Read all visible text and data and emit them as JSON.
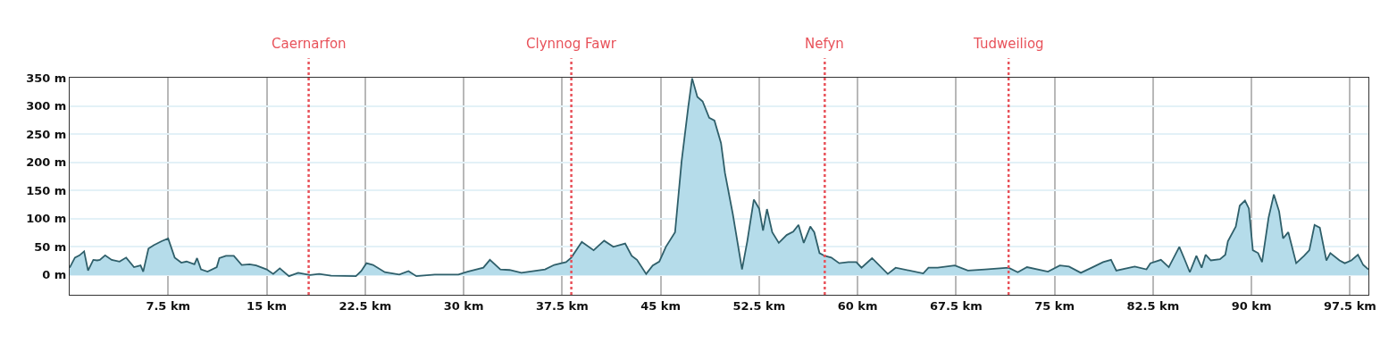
{
  "chart_data": {
    "type": "area",
    "x": [
      0,
      0.4,
      0.75,
      1.1,
      1.4,
      1.8,
      2.1,
      2.3,
      2.7,
      3.2,
      3.8,
      4.3,
      4.9,
      5.4,
      5.6,
      6.0,
      6.4,
      7.0,
      7.5,
      8.0,
      8.5,
      8.9,
      9.5,
      9.7,
      10.0,
      10.5,
      11.2,
      11.4,
      11.9,
      12.5,
      13.1,
      13.7,
      14.2,
      15.0,
      15.5,
      16.0,
      16.7,
      17.4,
      18.3,
      19.0,
      19.9,
      21.8,
      22.2,
      22.6,
      23.1,
      24.0,
      25.1,
      25.8,
      26.4,
      27.8,
      29.6,
      30.3,
      31.5,
      32.0,
      32.8,
      33.5,
      34.4,
      36.2,
      36.9,
      37.8,
      38.2,
      39.0,
      39.9,
      40.7,
      41.4,
      42.3,
      42.8,
      43.2,
      43.9,
      44.4,
      44.9,
      45.4,
      46.1,
      46.6,
      47.1,
      47.4,
      47.8,
      48.2,
      48.7,
      49.1,
      49.6,
      49.9,
      50.5,
      51.2,
      51.6,
      52.1,
      52.5,
      52.8,
      53.1,
      53.5,
      54.0,
      54.6,
      55.1,
      55.5,
      55.9,
      56.4,
      56.7,
      57.1,
      57.5,
      58.0,
      58.6,
      59.3,
      59.9,
      60.3,
      61.1,
      62.3,
      62.9,
      65.0,
      65.4,
      66.1,
      67.4,
      68.4,
      69.7,
      71.5,
      72.2,
      72.9,
      74.5,
      75.4,
      76.1,
      77.0,
      77.9,
      78.7,
      79.3,
      79.7,
      81.1,
      82.0,
      82.3,
      83.1,
      83.7,
      84.5,
      84.9,
      85.3,
      85.8,
      86.2,
      86.5,
      86.9,
      87.6,
      88.0,
      88.2,
      88.8,
      89.1,
      89.5,
      89.8,
      90.1,
      90.5,
      90.8,
      91.3,
      91.7,
      92.1,
      92.4,
      92.8,
      93.4,
      94.0,
      94.4,
      94.8,
      95.2,
      95.7,
      96.0,
      96.7,
      97.1,
      97.6,
      98.1,
      98.5,
      98.9
    ],
    "series": [
      {
        "color": "#2f5f6a",
        "values": [
          13,
          31,
          35,
          42,
          8,
          27,
          26,
          27,
          35,
          27,
          24,
          31,
          14,
          17,
          6,
          47,
          53,
          60,
          65,
          31,
          22,
          24,
          19,
          30,
          10,
          6,
          14,
          30,
          34,
          34,
          18,
          19,
          17,
          10,
          2,
          12,
          -2,
          4,
          0,
          2,
          -1,
          -2,
          7,
          21,
          18,
          5,
          1,
          7,
          -2,
          1,
          1,
          6,
          13,
          27,
          10,
          9,
          4,
          10,
          18,
          23,
          31,
          59,
          44,
          61,
          50,
          56,
          34,
          27,
          2,
          17,
          24,
          50,
          76,
          202,
          297,
          349,
          316,
          308,
          279,
          274,
          234,
          181,
          108,
          10,
          60,
          134,
          118,
          79,
          117,
          76,
          57,
          71,
          77,
          89,
          57,
          86,
          76,
          39,
          34,
          31,
          21,
          23,
          23,
          13,
          30,
          2,
          13,
          3,
          13,
          13,
          17,
          8,
          10,
          13,
          5,
          14,
          6,
          17,
          15,
          4,
          14,
          23,
          27,
          8,
          15,
          10,
          21,
          27,
          14,
          50,
          28,
          5,
          34,
          13,
          36,
          26,
          28,
          36,
          60,
          86,
          123,
          132,
          118,
          44,
          39,
          23,
          102,
          143,
          113,
          65,
          76,
          21,
          34,
          44,
          89,
          84,
          26,
          39,
          26,
          21,
          26,
          36,
          18,
          10
        ]
      }
    ],
    "xlim": [
      0,
      98.9
    ],
    "xticks": [
      {
        "value": 7.5,
        "label": "7.5 km"
      },
      {
        "value": 15,
        "label": "15 km"
      },
      {
        "value": 22.5,
        "label": "22.5 km"
      },
      {
        "value": 30,
        "label": "30 km"
      },
      {
        "value": 37.5,
        "label": "37.5 km"
      },
      {
        "value": 45,
        "label": "45 km"
      },
      {
        "value": 52.5,
        "label": "52.5 km"
      },
      {
        "value": 60,
        "label": "60 km"
      },
      {
        "value": 67.5,
        "label": "67.5 km"
      },
      {
        "value": 75,
        "label": "75 km"
      },
      {
        "value": 82.5,
        "label": "82.5 km"
      },
      {
        "value": 90,
        "label": "90 km"
      },
      {
        "value": 97.5,
        "label": "97.5 km"
      }
    ],
    "ylim": [
      -35,
      350
    ],
    "yticks": [
      {
        "value": 0,
        "label": "0 m"
      },
      {
        "value": 50,
        "label": "50 m"
      },
      {
        "value": 100,
        "label": "100 m"
      },
      {
        "value": 150,
        "label": "150 m"
      },
      {
        "value": 200,
        "label": "200 m"
      },
      {
        "value": 250,
        "label": "250 m"
      },
      {
        "value": 300,
        "label": "300 m"
      },
      {
        "value": 350,
        "label": "350 m"
      }
    ],
    "grid": true,
    "legend": false,
    "line_style": "solid",
    "ref_lines": [
      {
        "axis": "x",
        "value": 18.2,
        "label": "Caernarfon",
        "color": "#e8525a",
        "line_style": "dotted"
      },
      {
        "axis": "x",
        "value": 38.2,
        "label": "Clynnog Fawr",
        "color": "#e8525a",
        "line_style": "dotted"
      },
      {
        "axis": "x",
        "value": 57.5,
        "label": "Nefyn",
        "color": "#e8525a",
        "line_style": "dotted"
      },
      {
        "axis": "x",
        "value": 71.5,
        "label": "Tudweiliog",
        "color": "#e8525a",
        "line_style": "dotted"
      }
    ]
  }
}
